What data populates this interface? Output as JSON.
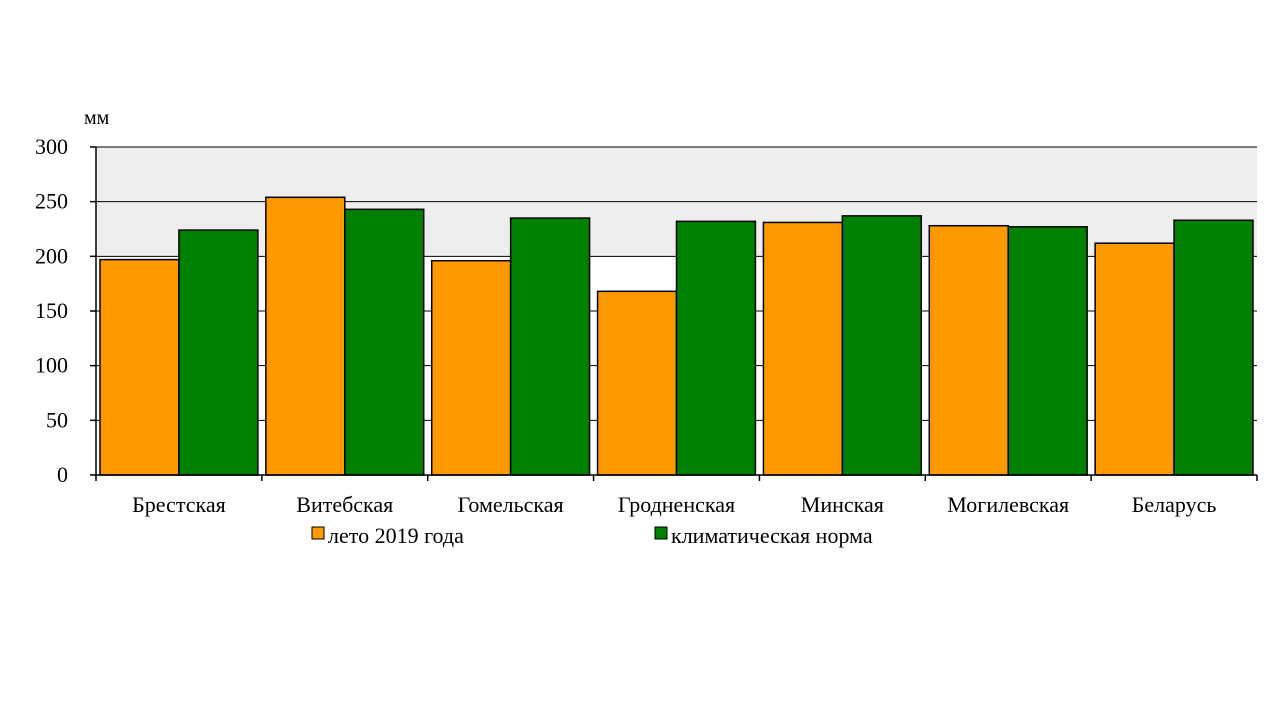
{
  "chart_data": {
    "type": "bar",
    "ylabel": "мм",
    "ylim": [
      0,
      300
    ],
    "yticks": [
      0,
      50,
      100,
      150,
      200,
      250,
      300
    ],
    "categories": [
      "Брестская",
      "Витебская",
      "Гомельская",
      "Гродненская",
      "Минская",
      "Могилевская",
      "Беларусь"
    ],
    "series": [
      {
        "name": "лето 2019 года",
        "color": "#FF9900",
        "values": [
          197,
          254,
          196,
          168,
          231,
          228,
          212
        ]
      },
      {
        "name": "климатическая норма",
        "color": "#008000",
        "values": [
          224,
          243,
          235,
          232,
          237,
          227,
          233
        ]
      }
    ],
    "grid": true,
    "legend": "bottom",
    "plot_background": "#EEEEEE"
  }
}
